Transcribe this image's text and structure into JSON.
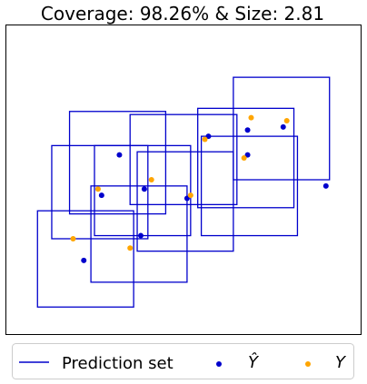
{
  "chart_data": {
    "type": "scatter",
    "title": "Coverage: 98.26% & Size: 2.81",
    "xlabel": "",
    "ylabel": "",
    "xlim": [
      0,
      10
    ],
    "ylim": [
      0,
      10
    ],
    "grid": false,
    "ticks_shown": false,
    "legend": {
      "placement": "bottom",
      "entries": [
        {
          "label": "Prediction set",
          "marker": "line",
          "color": "#0000cc"
        },
        {
          "label": "Ŷ",
          "marker": "dot",
          "color": "#0000cc"
        },
        {
          "label": "Y",
          "marker": "dot",
          "color": "#ffa500"
        }
      ]
    },
    "colors": {
      "prediction_set": "#0000cc",
      "y_hat": "#0000cc",
      "y": "#ffa500"
    },
    "prediction_sets": [
      {
        "x": [
          5.5,
          8.2
        ],
        "y": [
          3.2,
          6.4
        ]
      },
      {
        "x": [
          3.5,
          6.5
        ],
        "y": [
          4.2,
          7.1
        ]
      },
      {
        "x": [
          6.4,
          9.1
        ],
        "y": [
          5.0,
          8.3
        ]
      },
      {
        "x": [
          1.8,
          4.5
        ],
        "y": [
          3.9,
          7.2
        ]
      },
      {
        "x": [
          2.5,
          5.2
        ],
        "y": [
          3.2,
          6.1
        ]
      },
      {
        "x": [
          1.3,
          4.0
        ],
        "y": [
          3.1,
          6.1
        ]
      },
      {
        "x": [
          3.7,
          6.4
        ],
        "y": [
          2.7,
          5.9
        ]
      },
      {
        "x": [
          2.4,
          5.1
        ],
        "y": [
          1.7,
          4.8
        ]
      },
      {
        "x": [
          0.9,
          3.6
        ],
        "y": [
          0.9,
          4.0
        ]
      },
      {
        "x": [
          5.4,
          8.1
        ],
        "y": [
          4.1,
          7.3
        ]
      }
    ],
    "y_hat": [
      {
        "x": 6.8,
        "y": 6.6
      },
      {
        "x": 5.7,
        "y": 6.4
      },
      {
        "x": 6.8,
        "y": 5.8
      },
      {
        "x": 7.8,
        "y": 6.7
      },
      {
        "x": 3.2,
        "y": 5.8
      },
      {
        "x": 3.9,
        "y": 4.7
      },
      {
        "x": 2.7,
        "y": 4.5
      },
      {
        "x": 5.1,
        "y": 4.4
      },
      {
        "x": 3.8,
        "y": 3.2
      },
      {
        "x": 2.2,
        "y": 2.4
      },
      {
        "x": 9.0,
        "y": 4.8
      }
    ],
    "y_points": [
      {
        "x": 6.9,
        "y": 7.0
      },
      {
        "x": 7.9,
        "y": 6.9
      },
      {
        "x": 6.7,
        "y": 5.7
      },
      {
        "x": 4.1,
        "y": 5.0
      },
      {
        "x": 2.6,
        "y": 4.7
      },
      {
        "x": 1.9,
        "y": 3.1
      },
      {
        "x": 3.5,
        "y": 2.8
      },
      {
        "x": 5.2,
        "y": 4.5
      },
      {
        "x": 5.6,
        "y": 6.3
      }
    ]
  }
}
